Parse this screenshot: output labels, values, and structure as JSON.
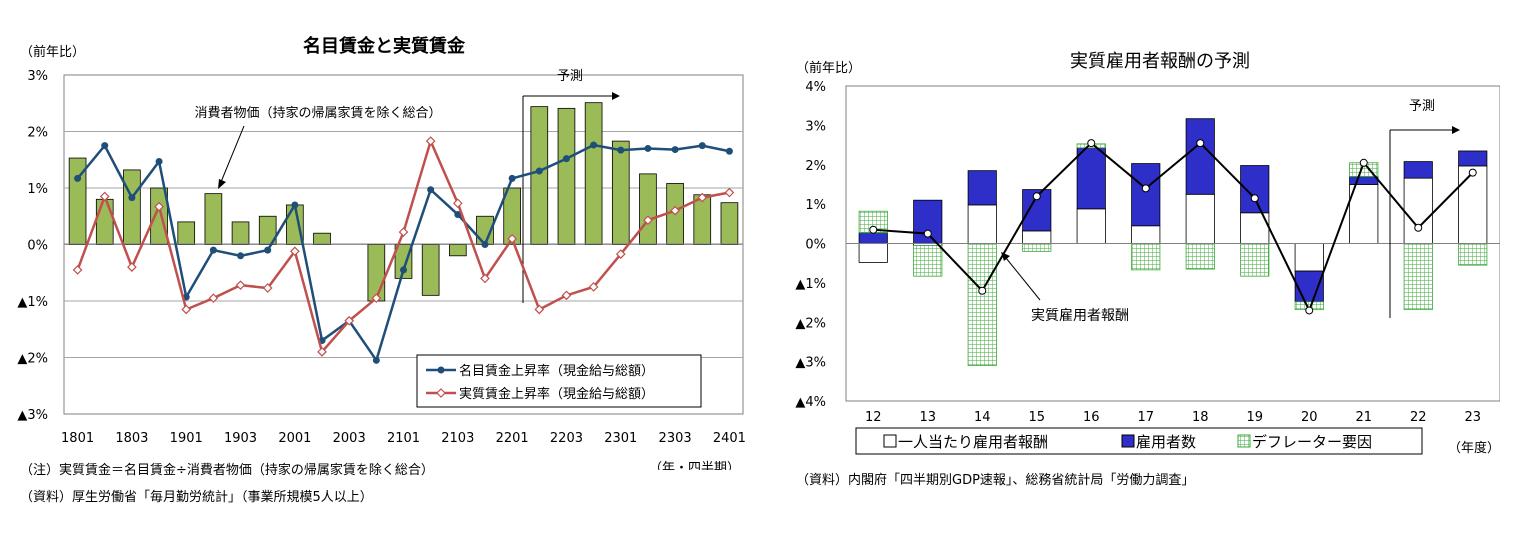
{
  "chart_data": [
    {
      "type": "bar+line",
      "title": "名目賃金と実質賃金",
      "ylabel_unit": "（前年比）",
      "xlabel_unit": "（年・四半期）",
      "ylim": [
        -3,
        3
      ],
      "y_ticks": [
        {
          "v": 3,
          "label": "3%"
        },
        {
          "v": 2,
          "label": "2%"
        },
        {
          "v": 1,
          "label": "1%"
        },
        {
          "v": 0,
          "label": "0%"
        },
        {
          "v": -1,
          "label": "▲1%"
        },
        {
          "v": -2,
          "label": "▲2%"
        },
        {
          "v": -3,
          "label": "▲3%"
        }
      ],
      "grid": true,
      "x": [
        "1801",
        "1802",
        "1803",
        "1804",
        "1901",
        "1902",
        "1903",
        "1904",
        "2001",
        "2002",
        "2003",
        "2004",
        "2101",
        "2102",
        "2103",
        "2104",
        "2201",
        "2202",
        "2203",
        "2204",
        "2301",
        "2302",
        "2303",
        "2304",
        "2401"
      ],
      "x_tick_labels": [
        "1801",
        "1803",
        "1901",
        "1903",
        "2001",
        "2003",
        "2101",
        "2103",
        "2201",
        "2203",
        "2301",
        "2303",
        "2401"
      ],
      "bars": {
        "name": "消費者物価（持家の帰属家賃を除く総合）",
        "values": [
          1.53,
          0.8,
          1.32,
          1.0,
          0.4,
          0.9,
          0.4,
          0.5,
          0.7,
          0.2,
          0.0,
          -1.0,
          -0.6,
          -0.9,
          -0.2,
          0.5,
          1.0,
          2.44,
          2.41,
          2.51,
          1.83,
          1.25,
          1.08,
          0.88,
          0.74
        ],
        "color": "#9bbb59"
      },
      "series": [
        {
          "name": "名目賃金上昇率（現金給与総額）",
          "color": "#1f4e79",
          "values": [
            1.17,
            1.75,
            0.83,
            1.47,
            -0.93,
            -0.1,
            -0.2,
            -0.1,
            0.7,
            -1.7,
            -1.35,
            -2.05,
            -0.45,
            0.97,
            0.53,
            0.0,
            1.17,
            1.3,
            1.52,
            1.76,
            1.67,
            1.7,
            1.68,
            1.75,
            1.65
          ]
        },
        {
          "name": "実質賃金上昇率（現金給与総額）",
          "color": "#c0504d",
          "values": [
            -0.45,
            0.85,
            -0.4,
            0.67,
            -1.15,
            -0.95,
            -0.72,
            -0.77,
            -0.12,
            -1.9,
            -1.35,
            -0.95,
            0.22,
            1.83,
            0.73,
            -0.6,
            0.1,
            -1.15,
            -0.9,
            -0.75,
            -0.17,
            0.43,
            0.6,
            0.83,
            0.92
          ]
        }
      ],
      "annotations": {
        "cpi_label": "消費者物価（持家の帰属家賃を除く総合）",
        "forecast": "予測"
      },
      "legend_position": "bottom-right"
    },
    {
      "type": "stacked-bar+line",
      "title": "実質雇用者報酬の予測",
      "ylabel_unit": "（前年比）",
      "xlabel_unit": "（年度）",
      "ylim": [
        -4,
        4
      ],
      "y_ticks": [
        {
          "v": 4,
          "label": "4%"
        },
        {
          "v": 3,
          "label": "3%"
        },
        {
          "v": 2,
          "label": "2%"
        },
        {
          "v": 1,
          "label": "1%"
        },
        {
          "v": 0,
          "label": "0%"
        },
        {
          "v": -1,
          "label": "▲1%"
        },
        {
          "v": -2,
          "label": "▲2%"
        },
        {
          "v": -3,
          "label": "▲3%"
        },
        {
          "v": -4,
          "label": "▲4%"
        }
      ],
      "grid": false,
      "categories": [
        "12",
        "13",
        "14",
        "15",
        "16",
        "17",
        "18",
        "19",
        "20",
        "21",
        "22",
        "23"
      ],
      "series": [
        {
          "name": "一人当たり雇用者報酬",
          "color": "#ffffff",
          "values": [
            -0.48,
            -0.05,
            0.98,
            0.32,
            0.88,
            0.45,
            1.25,
            0.78,
            -0.7,
            1.5,
            1.66,
            1.97
          ]
        },
        {
          "name": "雇用者数",
          "color": "#2e2ec8",
          "values": [
            0.27,
            1.1,
            0.87,
            1.05,
            1.55,
            1.58,
            1.92,
            1.2,
            -0.78,
            0.2,
            0.42,
            0.38
          ]
        },
        {
          "name": "デフレーター要因",
          "color": "#7fd07f",
          "values": [
            0.55,
            -0.78,
            -3.1,
            -0.2,
            0.1,
            -0.67,
            -0.65,
            -0.83,
            -0.2,
            0.35,
            -1.68,
            -0.55
          ]
        }
      ],
      "line": {
        "name": "実質雇用者報酬",
        "color": "#000000",
        "values": [
          0.35,
          0.25,
          -1.2,
          1.2,
          2.55,
          1.4,
          2.55,
          1.15,
          -1.7,
          2.05,
          0.4,
          1.8
        ]
      },
      "annotations": {
        "line_label": "実質雇用者報酬",
        "forecast": "予測"
      },
      "legend_position": "bottom"
    }
  ],
  "notes": {
    "left_note": "（注）実質賃金＝名目賃金÷消費者物価（持家の帰属家賃を除く総合）",
    "left_source": "（資料）厚生労働省「毎月勤労統計」（事業所規模5人以上）",
    "right_source": "（資料）内閣府「四半期別GDP速報」、総務省統計局「労働力調査」"
  },
  "colors": {
    "grid": "#a6a6a6",
    "axis": "#808080"
  }
}
